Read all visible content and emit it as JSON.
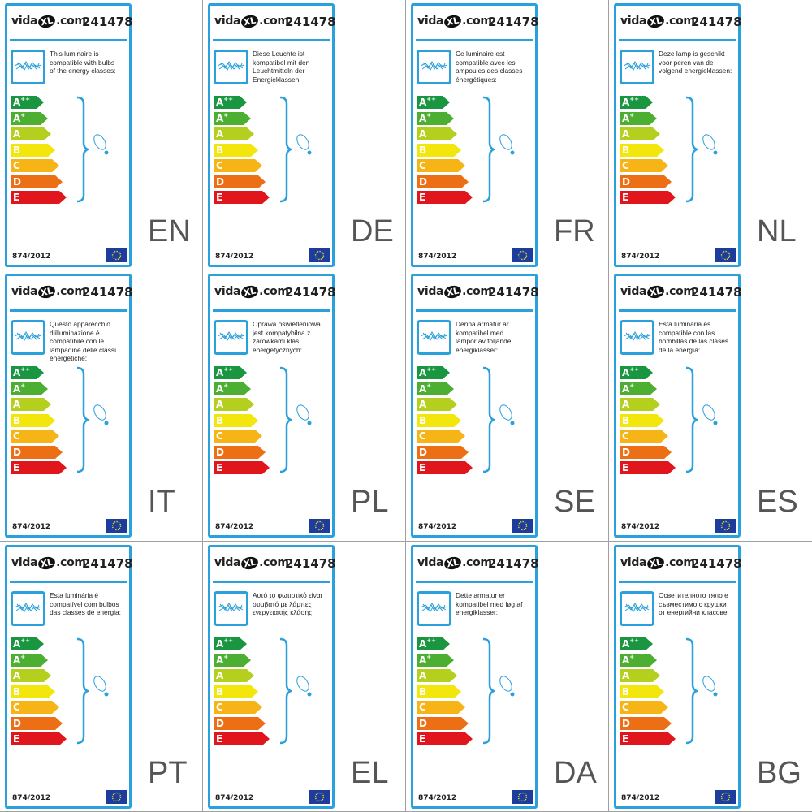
{
  "logo_text": {
    "pre": "vida",
    "mark": "XL",
    "post": ".com"
  },
  "product_number": "241478",
  "regulation": "874/2012",
  "energy_classes": [
    {
      "label": "A",
      "sup": "++",
      "color": "#1a9640"
    },
    {
      "label": "A",
      "sup": "+",
      "color": "#4daf32"
    },
    {
      "label": "A",
      "sup": "",
      "color": "#b4cf1e"
    },
    {
      "label": "B",
      "sup": "",
      "color": "#f2e60c"
    },
    {
      "label": "C",
      "sup": "",
      "color": "#f6b416"
    },
    {
      "label": "D",
      "sup": "",
      "color": "#ec6f16"
    },
    {
      "label": "E",
      "sup": "",
      "color": "#e1161d"
    }
  ],
  "accent_color": "#2aa0dc",
  "labels": [
    {
      "lang": "EN",
      "text": "This luminaire is\ncompatible with bulbs\nof the energy classes:"
    },
    {
      "lang": "DE",
      "text": "Diese Leuchte ist\nkompatibel mit den\nLeuchtmitteln der\nEnergieklassen:"
    },
    {
      "lang": "FR",
      "text": "Ce luminaire est\ncompatible avec les\nampoules des classes\nénergétiques:"
    },
    {
      "lang": "NL",
      "text": "Deze lamp is geschikt\nvoor peren van de\nvolgend energieklassen:"
    },
    {
      "lang": "IT",
      "text": "Questo apparecchio\nd'illuminazione è\ncompatibile con le\nlampadine delle classi\nenergetiche:"
    },
    {
      "lang": "PL",
      "text": "Oprawa oświetleniowa\njest kompatybilna z\nżarówkami klas\nenergetycznych:"
    },
    {
      "lang": "SE",
      "text": "Denna armatur är\nkompatibel med\nlampor av följande\nenergiklasser:"
    },
    {
      "lang": "ES",
      "text": "Esta luminaria es\ncompatible con las\nbombillas de las clases\nde la energía:"
    },
    {
      "lang": "PT",
      "text": "Esta luminária é\ncompatível com bulbos\ndas classes de energia:"
    },
    {
      "lang": "EL",
      "text": "Αυτό το φωτιστικό είναι\nσυμβατό με λάμπες\nενεργειακής κλάσης:"
    },
    {
      "lang": "DA",
      "text": "Dette armatur er\nkompatibel med løg af\nenergiklasser:"
    },
    {
      "lang": "BG",
      "text": "Осветителното тяло е\nсъвместимо с крушки\nот енергийни класове:"
    }
  ]
}
